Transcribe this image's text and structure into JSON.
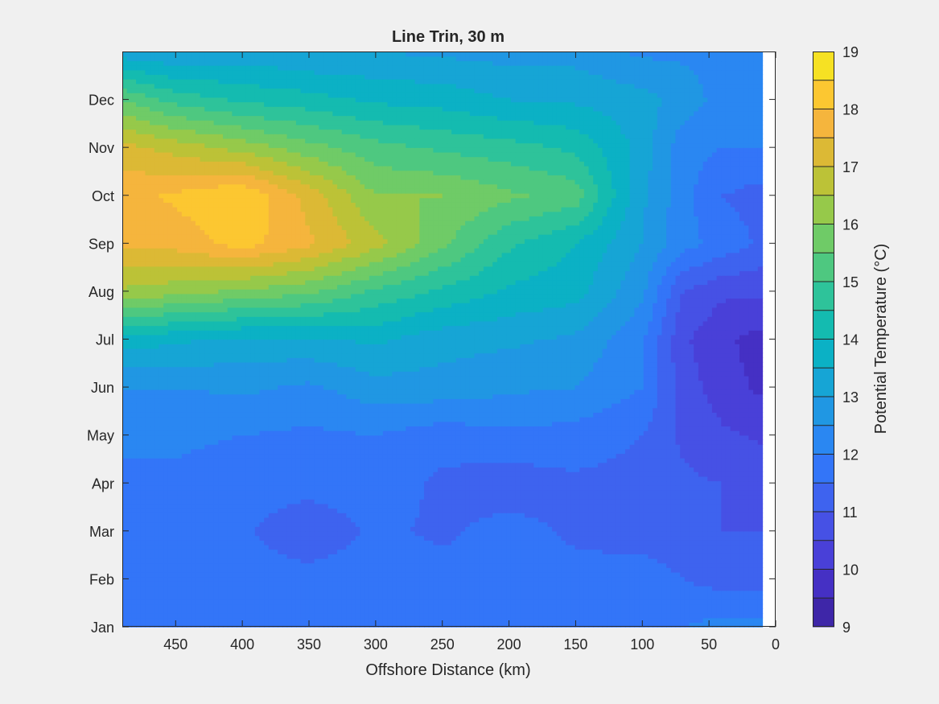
{
  "chart_data": {
    "type": "heatmap",
    "title": "Line Trin, 30 m",
    "xlabel": "Offshore Distance (km)",
    "ylabel": "",
    "xlim": [
      490,
      0
    ],
    "x_reversed": true,
    "x_ticks": [
      450,
      400,
      350,
      300,
      250,
      200,
      150,
      100,
      50,
      0
    ],
    "x_tick_labels": [
      "450",
      "400",
      "350",
      "300",
      "250",
      "200",
      "150",
      "100",
      "50",
      "0"
    ],
    "y_ticks": [
      "Jan",
      "Feb",
      "Mar",
      "Apr",
      "May",
      "Jun",
      "Jul",
      "Aug",
      "Sep",
      "Oct",
      "Nov",
      "Dec"
    ],
    "data_x_range": [
      490,
      10
    ],
    "colorbar": {
      "label": "Potential Temperature (°C)",
      "range": [
        9,
        19
      ],
      "step": 0.5,
      "ticks": [
        9,
        10,
        11,
        12,
        13,
        14,
        15,
        16,
        17,
        18,
        19
      ],
      "tick_labels": [
        "9",
        "10",
        "11",
        "12",
        "13",
        "14",
        "15",
        "16",
        "17",
        "18",
        "19"
      ],
      "colors": [
        "#3e26a8",
        "#4530c4",
        "#4940d8",
        "#4651e5",
        "#3e63ef",
        "#3375f8",
        "#2a87f2",
        "#2097e3",
        "#16a5d5",
        "#0bb1c5",
        "#14bbb0",
        "#2ec39a",
        "#4ec880",
        "#6fcb67",
        "#96c94a",
        "#bcc237",
        "#dcb935",
        "#f5b53d",
        "#fcc731",
        "#f6e123"
      ]
    },
    "rows": [
      "Jan",
      "Feb",
      "Mar",
      "Apr",
      "May",
      "Jun",
      "Jul",
      "Aug",
      "Sep",
      "Oct",
      "Nov",
      "Dec",
      "Jan"
    ],
    "cols_km": [
      490,
      450,
      400,
      350,
      300,
      250,
      200,
      150,
      100,
      70,
      40,
      10
    ],
    "values": [
      [
        12.0,
        12.0,
        12.0,
        12.0,
        12.0,
        11.8,
        11.8,
        12.0,
        12.0,
        12.0,
        12.2,
        12.2
      ],
      [
        11.8,
        11.9,
        11.7,
        11.7,
        11.8,
        11.7,
        11.7,
        11.7,
        11.8,
        11.5,
        11.3,
        11.3
      ],
      [
        11.8,
        11.8,
        11.6,
        11.1,
        11.6,
        11.4,
        11.7,
        11.4,
        11.2,
        11.2,
        11.0,
        11.0
      ],
      [
        12.0,
        11.9,
        11.7,
        11.7,
        11.8,
        11.4,
        11.2,
        11.4,
        11.3,
        11.1,
        11.0,
        10.9
      ],
      [
        12.0,
        12.1,
        12.0,
        11.9,
        12.0,
        11.7,
        11.9,
        11.8,
        11.5,
        10.9,
        10.6,
        10.4
      ],
      [
        12.5,
        12.5,
        12.6,
        12.4,
        12.8,
        12.8,
        12.6,
        12.5,
        12.0,
        10.8,
        10.2,
        9.9
      ],
      [
        13.8,
        13.6,
        13.4,
        13.4,
        13.6,
        13.2,
        13.1,
        12.9,
        12.1,
        10.6,
        10.1,
        9.8
      ],
      [
        16.4,
        16.2,
        15.9,
        15.6,
        14.9,
        14.4,
        13.9,
        13.7,
        12.6,
        11.0,
        10.6,
        10.6
      ],
      [
        17.6,
        17.7,
        18.2,
        17.6,
        16.7,
        15.6,
        14.6,
        14.0,
        13.0,
        12.2,
        11.8,
        11.4
      ],
      [
        17.8,
        18.1,
        18.5,
        17.3,
        16.0,
        16.0,
        15.6,
        15.3,
        13.1,
        12.2,
        11.5,
        11.3
      ],
      [
        17.2,
        16.8,
        16.3,
        15.7,
        15.2,
        14.9,
        14.7,
        14.4,
        13.3,
        12.2,
        12.0,
        12.0
      ],
      [
        15.5,
        14.8,
        14.4,
        14.2,
        13.9,
        13.8,
        13.5,
        13.4,
        13.2,
        12.8,
        12.3,
        12.0
      ],
      [
        13.2,
        13.0,
        13.2,
        13.0,
        13.0,
        12.9,
        12.8,
        12.8,
        12.4,
        12.4,
        12.3,
        12.3
      ]
    ]
  }
}
